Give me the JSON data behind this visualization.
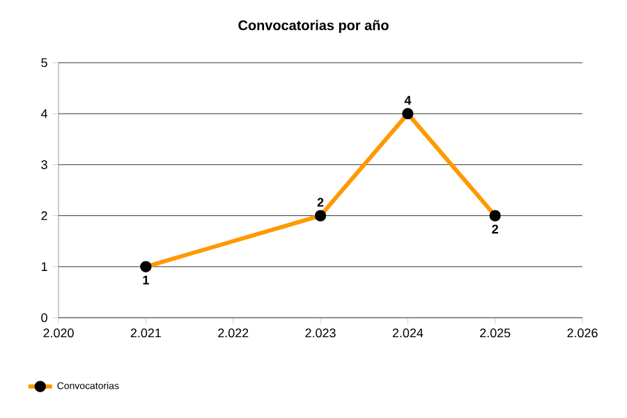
{
  "chart_data": {
    "type": "line",
    "title": "Convocatorias por año",
    "x": [
      2021,
      2023,
      2024,
      2025
    ],
    "series": [
      {
        "name": "Convocatorias",
        "color": "#ff9900",
        "values": [
          1,
          2,
          4,
          2
        ]
      }
    ],
    "xlim": [
      2020,
      2026
    ],
    "xticks": [
      {
        "value": 2020,
        "label": "2.020"
      },
      {
        "value": 2021,
        "label": "2.021"
      },
      {
        "value": 2022,
        "label": "2.022"
      },
      {
        "value": 2023,
        "label": "2.023"
      },
      {
        "value": 2024,
        "label": "2.024"
      },
      {
        "value": 2025,
        "label": "2.025"
      },
      {
        "value": 2026,
        "label": "2.026"
      }
    ],
    "ylim": [
      0,
      5
    ],
    "yticks": [
      0,
      1,
      2,
      3,
      4,
      5
    ],
    "grid": "y",
    "legend": "bottom left",
    "marker": "circle",
    "line_style": "solid",
    "data_labels": true
  }
}
